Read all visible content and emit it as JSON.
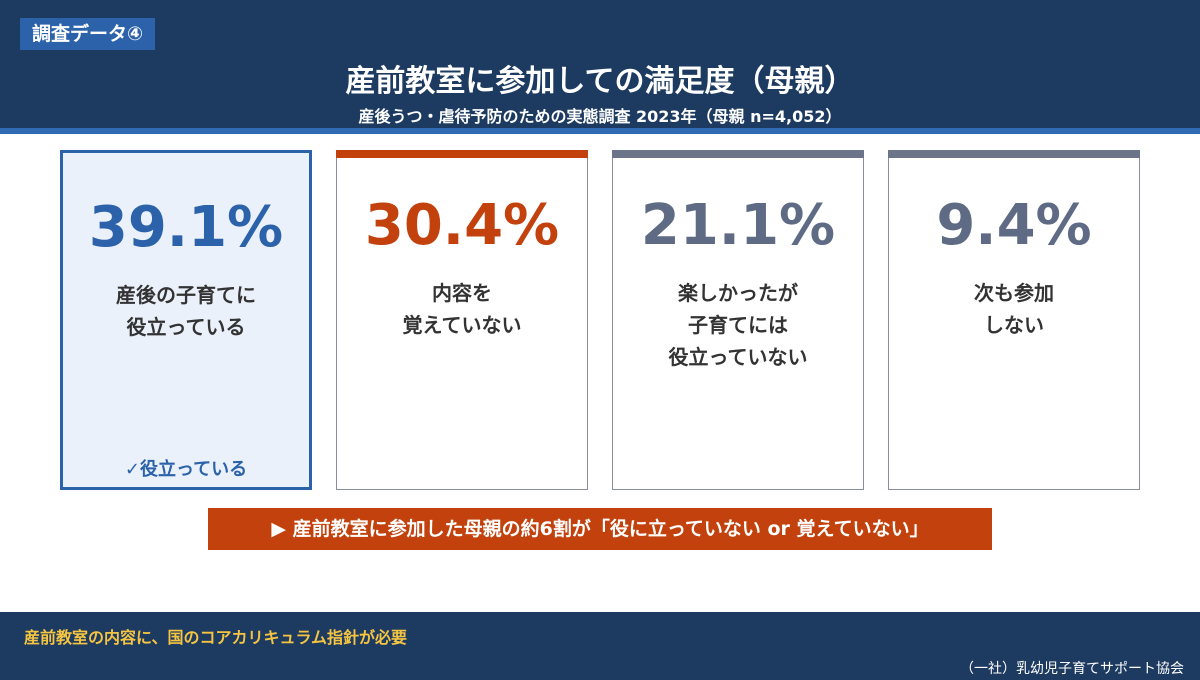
{
  "header": {
    "tag": "調査データ④",
    "title": "産前教室に参加しての満足度（母親）",
    "subtitle": "産後うつ・虐待予防のための実態調査 2023年（母親 n=4,052）"
  },
  "cards": [
    {
      "value": "39.1%",
      "label": [
        "産後の子育てに",
        "役立っている"
      ],
      "note": "✓役立っている"
    },
    {
      "value": "30.4%",
      "label": [
        "内容を",
        "覚えていない"
      ]
    },
    {
      "value": "21.1%",
      "label": [
        "楽しかったが",
        "子育てには",
        "役立っていない"
      ]
    },
    {
      "value": "9.4%",
      "label": [
        "次も参加",
        "しない"
      ]
    }
  ],
  "banner": "▶ 産前教室に参加した母親の約6割が「役に立っていない or 覚えていない」",
  "footer": {
    "message": "産前教室の内容に、国のコアカリキュラム指針が必要",
    "credit": "（一社）乳幼児子育てサポート協会"
  }
}
